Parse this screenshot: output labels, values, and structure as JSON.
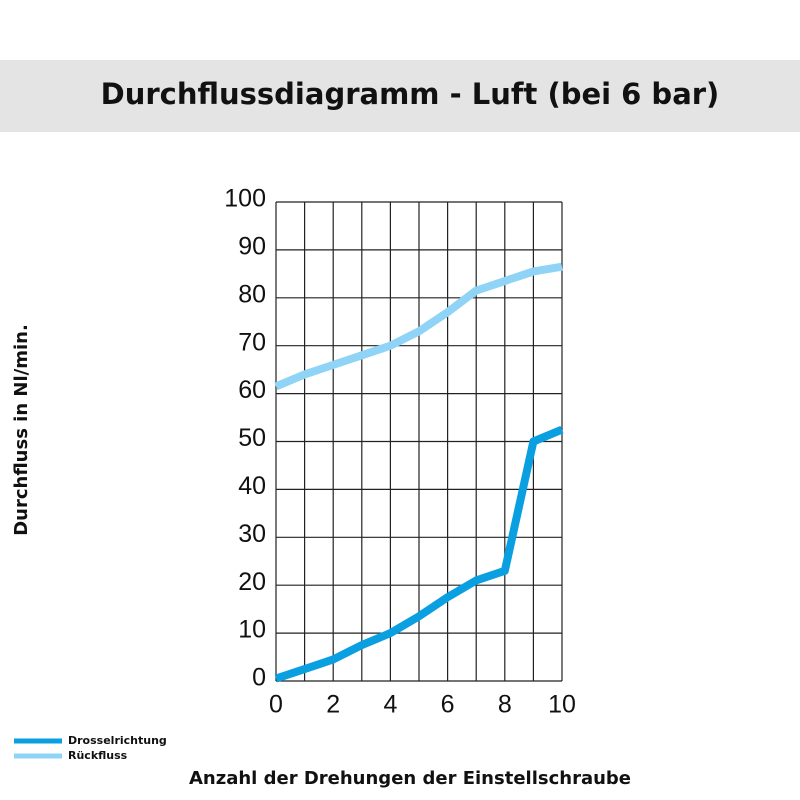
{
  "chart_data": {
    "type": "line",
    "title": "Durchflussdiagramm - Luft (bei 6 bar)",
    "x_label": "Anzahl der Drehungen der Einstellschraube",
    "y_label": "Durchfluss in Nl/min.",
    "x": [
      0,
      1,
      2,
      3,
      4,
      5,
      6,
      7,
      8,
      9,
      10
    ],
    "series": [
      {
        "name": "Drosselrichtung",
        "color": "#0a9fe0",
        "values": [
          0.5,
          2.5,
          4.5,
          7.5,
          10,
          13.5,
          17.5,
          21,
          23,
          50,
          52.5
        ]
      },
      {
        "name": "Rückfluss",
        "color": "#8fd4f6",
        "values": [
          61.5,
          64,
          66,
          68,
          70,
          73,
          77,
          81.5,
          83.5,
          85.5,
          86.5
        ]
      }
    ],
    "xlim": [
      0,
      10
    ],
    "xticks": [
      0,
      2,
      4,
      6,
      8,
      10
    ],
    "x_minor_ticks": [
      1,
      3,
      5,
      7,
      9
    ],
    "ylim": [
      0,
      100
    ],
    "yticks": [
      0,
      10,
      20,
      30,
      40,
      50,
      60,
      70,
      80,
      90,
      100
    ],
    "grid": true
  }
}
